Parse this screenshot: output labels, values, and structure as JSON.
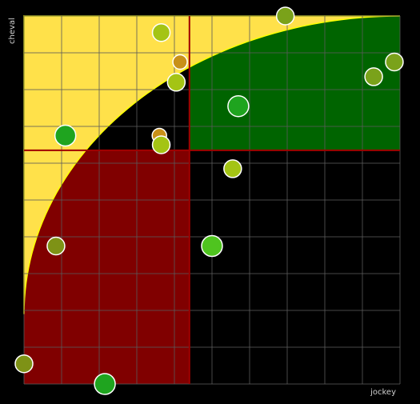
{
  "chart_data": {
    "type": "scatter",
    "title": "",
    "xlabel": "jockey",
    "ylabel": "cheval",
    "xlim": [
      0,
      10
    ],
    "ylim": [
      0,
      10
    ],
    "grid": true,
    "threshold": {
      "x": 4.4,
      "y": 6.35
    },
    "curve": {
      "type": "inverse_quadratic_arc",
      "center": [
        10,
        0
      ],
      "radius_x": 10,
      "radius_y": 10,
      "bottom_y_at_xmax": 1.9
    },
    "colors": {
      "background": "#000000",
      "quadrant_low_low": "#800000",
      "quadrant_high_high": "#006400",
      "zone_fill": "#ffe14a",
      "zone_edge": "#ffff00",
      "threshold_line": "#a00000",
      "grid": "#5a5a5a",
      "point_stroke": "#ffffff"
    },
    "points": [
      {
        "x": 3.65,
        "y": 9.55,
        "r": 11,
        "color": "#a4c414"
      },
      {
        "x": 6.95,
        "y": 10.0,
        "r": 11,
        "color": "#7aa21a"
      },
      {
        "x": 4.15,
        "y": 8.75,
        "r": 9,
        "color": "#c89018"
      },
      {
        "x": 4.05,
        "y": 8.2,
        "r": 11,
        "color": "#a4c414"
      },
      {
        "x": 9.85,
        "y": 8.75,
        "r": 11,
        "color": "#7aa21a"
      },
      {
        "x": 9.3,
        "y": 8.35,
        "r": 11,
        "color": "#7aa21a"
      },
      {
        "x": 5.7,
        "y": 7.55,
        "r": 13,
        "color": "#1fa41f"
      },
      {
        "x": 1.1,
        "y": 6.75,
        "r": 13,
        "color": "#1fa41f"
      },
      {
        "x": 3.6,
        "y": 6.75,
        "r": 9,
        "color": "#c89018"
      },
      {
        "x": 3.65,
        "y": 6.5,
        "r": 11,
        "color": "#a4c414"
      },
      {
        "x": 5.55,
        "y": 5.85,
        "r": 11,
        "color": "#a4c414"
      },
      {
        "x": 5.0,
        "y": 3.75,
        "r": 13,
        "color": "#4fc41f"
      },
      {
        "x": 0.85,
        "y": 3.75,
        "r": 11,
        "color": "#7e9216"
      },
      {
        "x": 0.0,
        "y": 0.55,
        "r": 11,
        "color": "#7e9216"
      },
      {
        "x": 2.15,
        "y": 0.0,
        "r": 13,
        "color": "#1fa41f"
      }
    ]
  }
}
